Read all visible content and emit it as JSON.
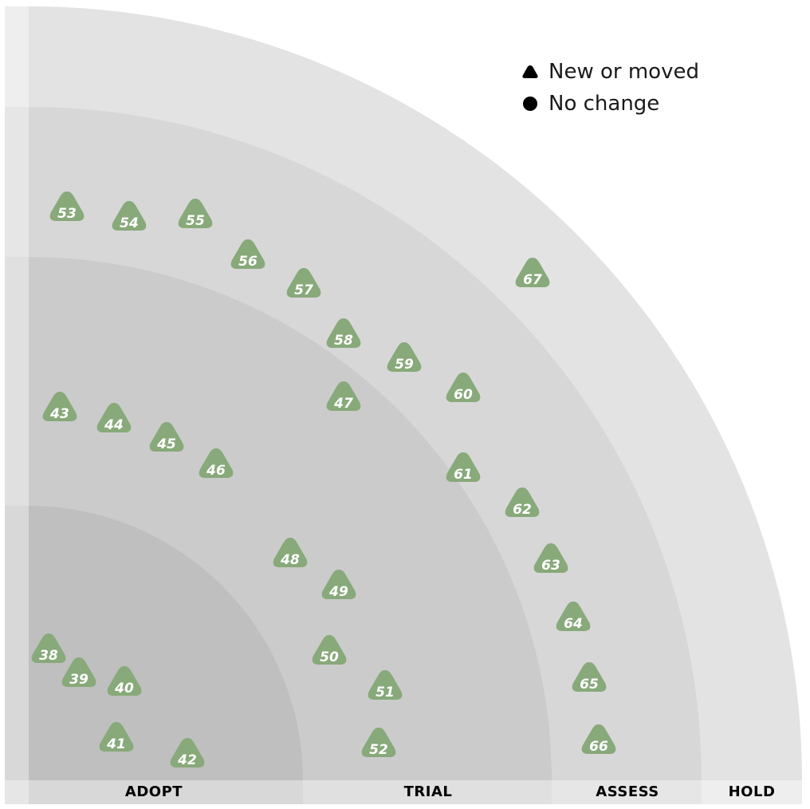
{
  "legend": {
    "new_or_moved": "New or moved",
    "no_change": "No change"
  },
  "rings": [
    "ADOPT",
    "TRIAL",
    "ASSESS",
    "HOLD"
  ],
  "colors": {
    "blip": "#88a97a",
    "ring_adopt": "#bfbfbf",
    "ring_trial": "#cbcbcb",
    "ring_assess": "#d7d7d7",
    "ring_hold": "#e3e3e3"
  },
  "blips": [
    {
      "id": "38",
      "shape": "triangle"
    },
    {
      "id": "39",
      "shape": "triangle"
    },
    {
      "id": "40",
      "shape": "triangle"
    },
    {
      "id": "41",
      "shape": "triangle"
    },
    {
      "id": "42",
      "shape": "triangle"
    },
    {
      "id": "43",
      "shape": "triangle"
    },
    {
      "id": "44",
      "shape": "triangle"
    },
    {
      "id": "45",
      "shape": "triangle"
    },
    {
      "id": "46",
      "shape": "triangle"
    },
    {
      "id": "47",
      "shape": "triangle"
    },
    {
      "id": "48",
      "shape": "triangle"
    },
    {
      "id": "49",
      "shape": "triangle"
    },
    {
      "id": "50",
      "shape": "triangle"
    },
    {
      "id": "51",
      "shape": "triangle"
    },
    {
      "id": "52",
      "shape": "triangle"
    },
    {
      "id": "53",
      "shape": "triangle"
    },
    {
      "id": "54",
      "shape": "triangle"
    },
    {
      "id": "55",
      "shape": "triangle"
    },
    {
      "id": "56",
      "shape": "triangle"
    },
    {
      "id": "57",
      "shape": "triangle"
    },
    {
      "id": "58",
      "shape": "triangle"
    },
    {
      "id": "59",
      "shape": "triangle"
    },
    {
      "id": "60",
      "shape": "triangle"
    },
    {
      "id": "61",
      "shape": "triangle"
    },
    {
      "id": "62",
      "shape": "triangle"
    },
    {
      "id": "63",
      "shape": "triangle"
    },
    {
      "id": "64",
      "shape": "triangle"
    },
    {
      "id": "65",
      "shape": "triangle"
    },
    {
      "id": "66",
      "shape": "triangle"
    },
    {
      "id": "67",
      "shape": "triangle"
    }
  ]
}
